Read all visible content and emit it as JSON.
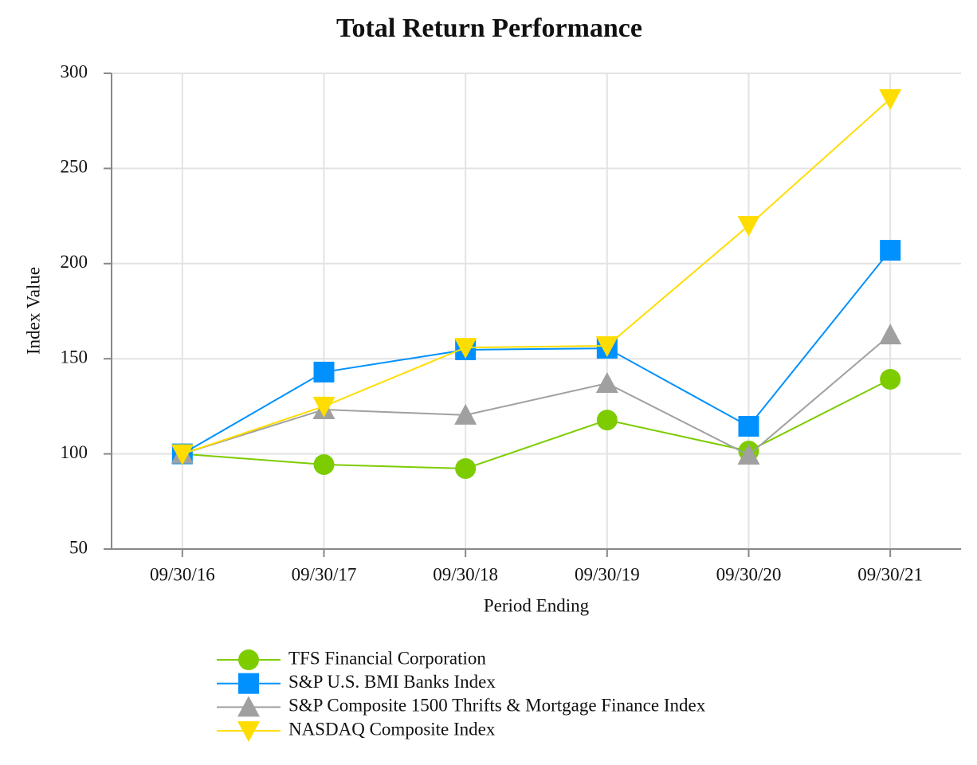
{
  "chart_data": {
    "type": "line",
    "title": "Total Return Performance",
    "x_label": "Period Ending",
    "y_label": "Index Value",
    "categories": [
      "09/30/16",
      "09/30/17",
      "09/30/18",
      "09/30/19",
      "09/30/20",
      "09/30/21"
    ],
    "series": [
      {
        "name": "TFS Financial Corporation",
        "color": "#7dcc00",
        "marker": "circle",
        "values": [
          100,
          94.4,
          92.3,
          117.8,
          101.5,
          139.2
        ]
      },
      {
        "name": "S&P U.S. BMI Banks Index",
        "color": "#0091ff",
        "marker": "square",
        "values": [
          100,
          143.0,
          154.7,
          155.5,
          114.5,
          207.0
        ]
      },
      {
        "name": "S&P Composite 1500 Thrifts & Mortgage Finance Index",
        "color": "#a0a0a0",
        "marker": "triangle-up",
        "values": [
          100,
          123.3,
          120.4,
          137.1,
          99.4,
          162.6
        ]
      },
      {
        "name": "NASDAQ Composite Index",
        "color": "#ffdd00",
        "marker": "triangle-down",
        "values": [
          100,
          125.0,
          155.9,
          156.8,
          220.0,
          286.6
        ]
      }
    ],
    "ylim": [
      50,
      300
    ],
    "yticks": [
      50,
      100,
      150,
      200,
      250,
      300
    ],
    "grid": true
  }
}
